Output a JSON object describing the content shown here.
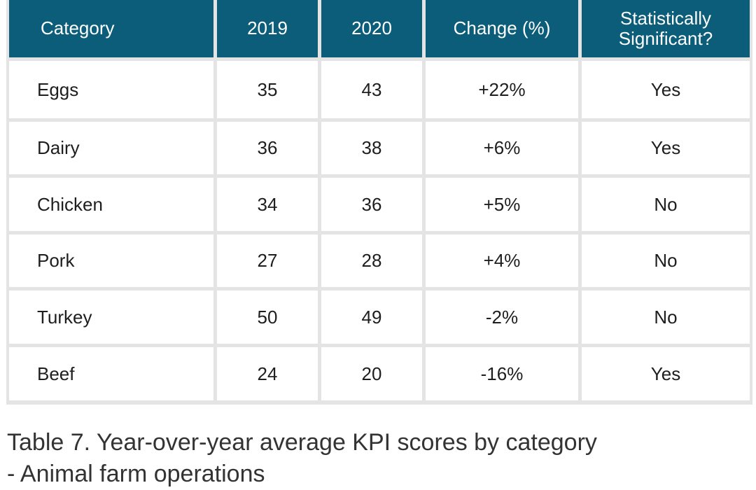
{
  "table": {
    "headers": [
      "Category",
      "2019",
      "2020",
      "Change (%)",
      "Statistically Significant?"
    ],
    "rows": [
      [
        "Eggs",
        "35",
        "43",
        "+22%",
        "Yes"
      ],
      [
        "Dairy",
        "36",
        "38",
        "+6%",
        "Yes"
      ],
      [
        "Chicken",
        "34",
        "36",
        "+5%",
        "No"
      ],
      [
        "Pork",
        "27",
        "28",
        "+4%",
        "No"
      ],
      [
        "Turkey",
        "50",
        "49",
        "-2%",
        "No"
      ],
      [
        "Beef",
        "24",
        "20",
        "-16%",
        "Yes"
      ]
    ]
  },
  "caption": "Table 7. Year-over-year average KPI scores by category - Animal farm operations",
  "colors": {
    "header_bg": "#0b5d79",
    "header_text": "#ffffff",
    "grid": "#e4e4e4"
  }
}
